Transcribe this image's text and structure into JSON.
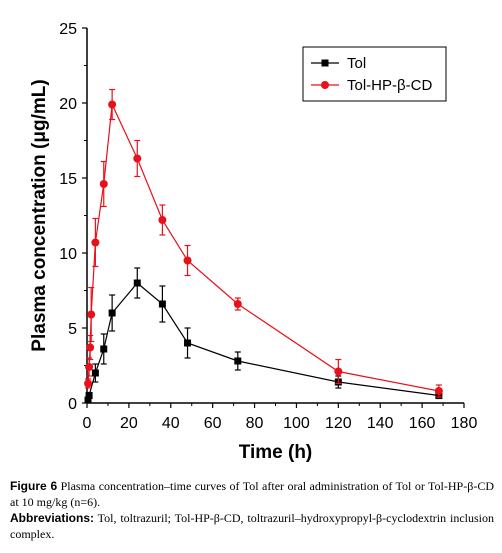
{
  "chart_data": {
    "type": "line",
    "xlabel": "Time (h)",
    "ylabel": "Plasma concentration (μg/mL)",
    "xlim": [
      0,
      180
    ],
    "ylim": [
      0,
      25
    ],
    "xticks": [
      0,
      20,
      40,
      60,
      80,
      100,
      120,
      140,
      160,
      180
    ],
    "yticks": [
      0,
      5,
      10,
      15,
      20,
      25
    ],
    "legend_position": "top-right",
    "series": [
      {
        "name": "Tol",
        "color": "#000000",
        "marker": "square",
        "points": [
          {
            "x": 0.5,
            "y": 0.2,
            "err": 0.1
          },
          {
            "x": 1,
            "y": 0.5,
            "err": 0.2
          },
          {
            "x": 4,
            "y": 2.0,
            "err": 0.6
          },
          {
            "x": 8,
            "y": 3.6,
            "err": 1.0
          },
          {
            "x": 12,
            "y": 6.0,
            "err": 1.2
          },
          {
            "x": 24,
            "y": 8.0,
            "err": 1.0
          },
          {
            "x": 36,
            "y": 6.6,
            "err": 1.2
          },
          {
            "x": 48,
            "y": 4.0,
            "err": 1.0
          },
          {
            "x": 72,
            "y": 2.8,
            "err": 0.6
          },
          {
            "x": 120,
            "y": 1.4,
            "err": 0.4
          },
          {
            "x": 168,
            "y": 0.5,
            "err": 0.2
          }
        ]
      },
      {
        "name": "Tol-HP-β-CD",
        "color": "#e8101a",
        "marker": "circle",
        "points": [
          {
            "x": 0.5,
            "y": 1.3,
            "err": 0.3
          },
          {
            "x": 1,
            "y": 2.4,
            "err": 0.6
          },
          {
            "x": 1.5,
            "y": 3.7,
            "err": 0.8
          },
          {
            "x": 2,
            "y": 5.9,
            "err": 1.8
          },
          {
            "x": 4,
            "y": 10.7,
            "err": 1.6
          },
          {
            "x": 8,
            "y": 14.6,
            "err": 1.5
          },
          {
            "x": 12,
            "y": 19.9,
            "err": 1.0
          },
          {
            "x": 24,
            "y": 16.3,
            "err": 1.2
          },
          {
            "x": 36,
            "y": 12.2,
            "err": 1.0
          },
          {
            "x": 48,
            "y": 9.5,
            "err": 1.0
          },
          {
            "x": 72,
            "y": 6.6,
            "err": 0.4
          },
          {
            "x": 120,
            "y": 2.1,
            "err": 0.8
          },
          {
            "x": 168,
            "y": 0.8,
            "err": 0.4
          }
        ]
      }
    ]
  },
  "caption": {
    "figure_label": "Figure 6",
    "figure_text": "Plasma concentration–time curves of Tol after oral administration of Tol or Tol-HP-β-CD at 10 mg/kg (n=6).",
    "abbrev_label": "Abbreviations:",
    "abbrev_text": "Tol, toltrazuril; Tol-HP-β-CD, toltrazuril–hydroxypropyl-β-cyclodextrin inclusion complex."
  }
}
